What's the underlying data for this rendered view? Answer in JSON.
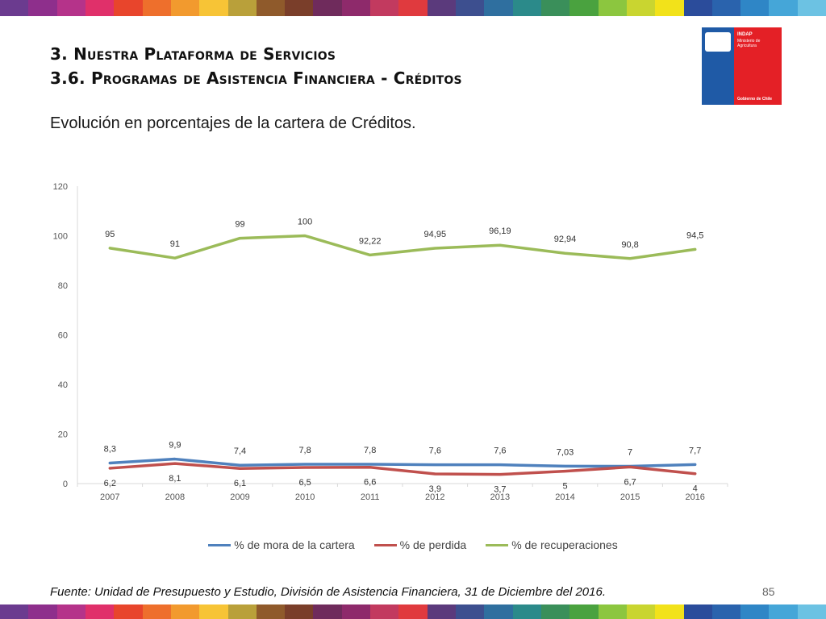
{
  "header": {
    "title_line1": "3. Nuestra Plataforma de Servicios",
    "title_line2": "3.6. Programas de Asistencia Financiera - Créditos",
    "subtitle": "Evolución en porcentajes de la cartera de Créditos."
  },
  "logo": {
    "brand": "INDAP",
    "ministry": "Ministerio de Agricultura",
    "government": "Gobierno de Chile"
  },
  "stripe_colors": [
    "#6b3b8f",
    "#8e2f8c",
    "#b5338a",
    "#e0306a",
    "#e8452c",
    "#ee6f2c",
    "#f29a2e",
    "#f7c436",
    "#b9a03a",
    "#8f5a2b",
    "#7a3e2a",
    "#6f2b5c",
    "#8e2a6b",
    "#c23a5f",
    "#e03a3e",
    "#5b3a7c",
    "#3d4f8f",
    "#2f6f9f",
    "#2b8a8a",
    "#3a8f5a",
    "#4aa23f",
    "#8cc63f",
    "#c9d530",
    "#f2e21a",
    "#2b4c9b",
    "#2a63ad",
    "#2f86c6",
    "#45a6d8",
    "#6cc2e3"
  ],
  "chart_data": {
    "type": "line",
    "categories": [
      "2007",
      "2008",
      "2009",
      "2010",
      "2011",
      "2012",
      "2013",
      "2014",
      "2015",
      "2016"
    ],
    "ylim": [
      0,
      120
    ],
    "yticks": [
      0,
      20,
      40,
      60,
      80,
      100,
      120
    ],
    "grid": false,
    "legend_position": "bottom",
    "series": [
      {
        "name": "% de mora de la cartera",
        "color": "#4f81bd",
        "values": [
          8.3,
          9.9,
          7.4,
          7.8,
          7.8,
          7.6,
          7.6,
          7.03,
          7,
          7.7
        ],
        "labels": [
          "8,3",
          "9,9",
          "7,4",
          "7,8",
          "7,8",
          "7,6",
          "7,6",
          "7,03",
          "7",
          "7,7"
        ]
      },
      {
        "name": "% de perdida",
        "color": "#c0504d",
        "values": [
          6.2,
          8.1,
          6.1,
          6.5,
          6.6,
          3.9,
          3.7,
          5,
          6.7,
          4
        ],
        "labels": [
          "6,2",
          "8,1",
          "6,1",
          "6,5",
          "6,6",
          "3,9",
          "3,7",
          "5",
          "6,7",
          "4"
        ]
      },
      {
        "name": "% de recuperaciones",
        "color": "#9bbb59",
        "values": [
          95,
          91,
          99,
          100,
          92.22,
          94.95,
          96.19,
          92.94,
          90.8,
          94.5
        ],
        "labels": [
          "95",
          "91",
          "99",
          "100",
          "92,22",
          "94,95",
          "96,19",
          "92,94",
          "90,8",
          "94,5"
        ]
      }
    ]
  },
  "footer": {
    "source": "Fuente: Unidad de Presupuesto y Estudio, División de Asistencia Financiera, 31 de Diciembre del 2016.",
    "page_number": "85"
  }
}
